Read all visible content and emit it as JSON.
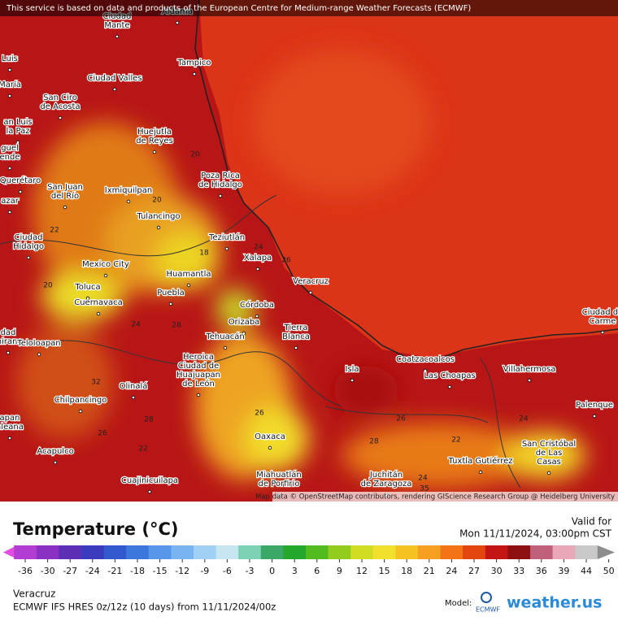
{
  "banner": "This service is based on data and products of the European Centre for Medium-range Weather Forecasts (ECMWF)",
  "attribution": "Map data © OpenStreetMap contributors, rendering GIScience Research Group @ Heidelberg University",
  "cities": [
    [
      "Aldama"
    ],
    [
      "Ciudad",
      "Mante"
    ],
    [
      "Tampico"
    ],
    [
      "Luis"
    ],
    [
      "María"
    ],
    [
      "Ciudad Valles"
    ],
    [
      "San Ciro",
      "de Acosta"
    ],
    [
      "an Luis",
      "la Paz"
    ],
    [
      "guel",
      "ende"
    ],
    [
      "Huejutla",
      "de Reyes"
    ],
    [
      "Querétaro"
    ],
    [
      "San Juan",
      "del Río"
    ],
    [
      "Ixmiquilpan"
    ],
    [
      "Poza Rica",
      "de Hidalgo"
    ],
    [
      "azar"
    ],
    [
      "Tulancingo"
    ],
    [
      "Ciudad",
      "Hidalgo"
    ],
    [
      "Teziutlán"
    ],
    [
      "Xalapa"
    ],
    [
      "Mexico City"
    ],
    [
      "Huamantla"
    ],
    [
      "Veracruz"
    ],
    [
      "Toluca"
    ],
    [
      "Cuernavaca"
    ],
    [
      "Puebla"
    ],
    [
      "Córdoba"
    ],
    [
      "Orizaba"
    ],
    [
      "Tierra",
      "Blanca"
    ],
    [
      "Tehuacán"
    ],
    [
      "dad",
      "mirano"
    ],
    [
      "Teloloapan"
    ],
    [
      "Heroica",
      "Ciudad de",
      "Huajuapan",
      "de León"
    ],
    [
      "Coatzacoalcos"
    ],
    [
      "Villahermosa"
    ],
    [
      "Las Choapas"
    ],
    [
      "Isla"
    ],
    [
      "Ciudad de",
      "Carme"
    ],
    [
      "Olinalá"
    ],
    [
      "Chilpancingo"
    ],
    [
      "Palenque"
    ],
    [
      "apan",
      "aleana"
    ],
    [
      "Oaxaca"
    ],
    [
      "San Cristóbal",
      "de Las",
      "Casas"
    ],
    [
      "Acapulco"
    ],
    [
      "Tuxtla Gutiérrez"
    ],
    [
      "Miahuatlán",
      "de Porfirio"
    ],
    [
      "Juchitán",
      "de Zaragoza"
    ],
    [
      "Cuajinicuilapa"
    ]
  ],
  "contour_labels": [
    20,
    20,
    22,
    18,
    24,
    26,
    20,
    24,
    28,
    26,
    26,
    28,
    32,
    22,
    26,
    28,
    22,
    24,
    24,
    35
  ],
  "legend": {
    "title": "Temperature (°C)",
    "valid_label": "Valid for",
    "valid_time": "Mon 11/11/2024, 03:00pm CST",
    "ticks": [
      -36,
      -30,
      -27,
      -24,
      -21,
      -18,
      -15,
      -12,
      -9,
      -6,
      -3,
      0,
      3,
      6,
      9,
      12,
      15,
      18,
      21,
      24,
      27,
      30,
      33,
      36,
      39,
      44,
      50
    ],
    "colors": [
      "#e24ce0",
      "#b33cd2",
      "#8a30c2",
      "#5d2fb4",
      "#3a3cbc",
      "#3158cc",
      "#3c78dc",
      "#5896ea",
      "#78b4f0",
      "#a0d0f4",
      "#c6e6f2",
      "#7cd0b4",
      "#3ca868",
      "#22a82a",
      "#52bc1e",
      "#92cc1e",
      "#cfdc22",
      "#f2e02c",
      "#f4c220",
      "#f4a01e",
      "#f27414",
      "#e44612",
      "#c41414",
      "#8e1010",
      "#c0607a",
      "#e8a8b8",
      "#c8c8c8",
      "#8c8c8c"
    ]
  },
  "footer": {
    "location": "Veracruz",
    "model_run": "ECMWF IFS HRES 0z/12z (10 days) from 11/11/2024/00z",
    "model_label": "Model:",
    "model_name": "ECMWF",
    "brand": "weather.us"
  }
}
